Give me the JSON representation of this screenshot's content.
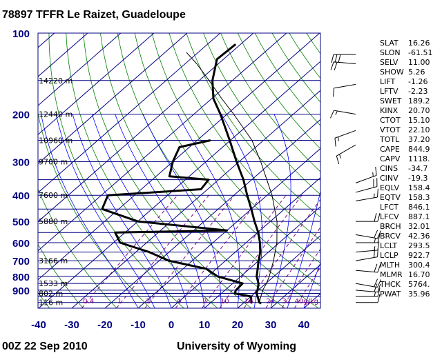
{
  "header": {
    "title": "78897 TFFR Le Raizet, Guadeloupe"
  },
  "footer": {
    "time": "00Z 22 Sep 2010",
    "source": "University of Wyoming"
  },
  "colors": {
    "isobar": "#000080",
    "isotherm": "#000080",
    "dry_adiabat": "#008000",
    "moist_adiabat": "#0000ff",
    "mixing_ratio": "#800080",
    "profile": "#000000"
  },
  "chart_data": {
    "type": "line",
    "pressure_levels": [
      100,
      200,
      300,
      400,
      500,
      600,
      700,
      800,
      900
    ],
    "temperature_ticks": [
      -40,
      -30,
      -20,
      -10,
      0,
      10,
      20,
      30,
      40
    ],
    "height_labels": [
      {
        "p": 150,
        "label": "14220 m"
      },
      {
        "p": 200,
        "label": "12440 m"
      },
      {
        "p": 250,
        "label": "10960 m"
      },
      {
        "p": 300,
        "label": "9700 m"
      },
      {
        "p": 400,
        "label": "7600 m"
      },
      {
        "p": 500,
        "label": "5880 m"
      },
      {
        "p": 700,
        "label": "3166 m"
      },
      {
        "p": 850,
        "label": "1533 m"
      },
      {
        "p": 925,
        "label": "802 m"
      },
      {
        "p": 1000,
        "label": "116 m"
      }
    ],
    "mixing_ratio_labels": [
      "0.4",
      "1",
      "2",
      "4",
      "7",
      "10",
      "16",
      "24",
      "32",
      "40g/kg"
    ],
    "mixing_ratios": [
      0.4,
      1,
      2,
      4,
      7,
      10,
      16,
      24,
      32,
      40
    ],
    "series": [
      {
        "name": "Temperature",
        "points": [
          [
            1008,
            25.5
          ],
          [
            1000,
            24.6
          ],
          [
            950,
            22.0
          ],
          [
            925,
            20.6
          ],
          [
            900,
            19.8
          ],
          [
            850,
            17.8
          ],
          [
            800,
            14.8
          ],
          [
            750,
            12.5
          ],
          [
            700,
            10.0
          ],
          [
            650,
            7.5
          ],
          [
            600,
            4.2
          ],
          [
            550,
            0.2
          ],
          [
            500,
            -4.8
          ],
          [
            450,
            -10.0
          ],
          [
            400,
            -16.0
          ],
          [
            350,
            -22.5
          ],
          [
            300,
            -30.8
          ],
          [
            250,
            -40.2
          ],
          [
            200,
            -52.0
          ],
          [
            175,
            -59.5
          ],
          [
            150,
            -66.0
          ],
          [
            125,
            -72.0
          ],
          [
            110,
            -71.5
          ]
        ]
      },
      {
        "name": "Dewpoint",
        "points": [
          [
            1008,
            22.7
          ],
          [
            1000,
            22.2
          ],
          [
            950,
            20.0
          ],
          [
            925,
            14.0
          ],
          [
            900,
            13.3
          ],
          [
            850,
            13.0
          ],
          [
            800,
            3.0
          ],
          [
            750,
            -3.0
          ],
          [
            700,
            -17.0
          ],
          [
            650,
            -26.0
          ],
          [
            600,
            -38.0
          ],
          [
            550,
            -43.0
          ],
          [
            540,
            -10.0
          ],
          [
            500,
            -40.0
          ],
          [
            450,
            -55.0
          ],
          [
            400,
            -58.0
          ],
          [
            380,
            -32.0
          ],
          [
            350,
            -33.0
          ],
          [
            340,
            -46.0
          ],
          [
            300,
            -50.0
          ],
          [
            265,
            -53.0
          ],
          [
            250,
            -46.0
          ]
        ]
      },
      {
        "name": "Parcel",
        "points": [
          [
            1000,
            24.6
          ],
          [
            950,
            23.0
          ],
          [
            900,
            21.4
          ],
          [
            850,
            20.2
          ],
          [
            800,
            18.6
          ],
          [
            700,
            14.5
          ],
          [
            600,
            9.3
          ],
          [
            500,
            2.0
          ],
          [
            400,
            -8.5
          ],
          [
            300,
            -23.5
          ],
          [
            250,
            -33.5
          ],
          [
            200,
            -48.0
          ],
          [
            175,
            -57.0
          ],
          [
            150,
            -67.0
          ],
          [
            130,
            -76.5
          ],
          [
            118,
            -83.5
          ]
        ]
      }
    ],
    "wind_barbs": [
      {
        "p": 120,
        "dir": 270,
        "spd": 30
      },
      {
        "p": 130,
        "dir": 275,
        "spd": 20
      },
      {
        "p": 155,
        "dir": 260,
        "spd": 10
      },
      {
        "p": 200,
        "dir": 280,
        "spd": 15
      },
      {
        "p": 230,
        "dir": 250,
        "spd": 15
      },
      {
        "p": 260,
        "dir": 240,
        "spd": 15
      },
      {
        "p": 360,
        "dir": 70,
        "spd": 15
      },
      {
        "p": 390,
        "dir": 75,
        "spd": 20
      },
      {
        "p": 420,
        "dir": 80,
        "spd": 15
      },
      {
        "p": 500,
        "dir": 90,
        "spd": 20
      },
      {
        "p": 560,
        "dir": 100,
        "spd": 20
      },
      {
        "p": 600,
        "dir": 90,
        "spd": 15
      },
      {
        "p": 650,
        "dir": 85,
        "spd": 15
      },
      {
        "p": 700,
        "dir": 80,
        "spd": 20
      },
      {
        "p": 760,
        "dir": 95,
        "spd": 20
      },
      {
        "p": 850,
        "dir": 100,
        "spd": 20
      },
      {
        "p": 900,
        "dir": 95,
        "spd": 20
      },
      {
        "p": 950,
        "dir": 90,
        "spd": 15
      },
      {
        "p": 1000,
        "dir": 90,
        "spd": 10
      }
    ],
    "xlim": [
      -40,
      45
    ],
    "ylim": [
      1050,
      100
    ],
    "yscale": "log"
  },
  "indices": [
    {
      "key": "SLAT",
      "value": "16.26"
    },
    {
      "key": "SLON",
      "value": "-61.51"
    },
    {
      "key": "SELV",
      "value": "11.00"
    },
    {
      "key": "SHOW",
      "value": "5.26"
    },
    {
      "key": "LIFT",
      "value": "-1.26"
    },
    {
      "key": "LFTV",
      "value": "-2.23"
    },
    {
      "key": "SWET",
      "value": "189.2"
    },
    {
      "key": "KINX",
      "value": "20.70"
    },
    {
      "key": "CTOT",
      "value": "15.10"
    },
    {
      "key": "VTOT",
      "value": "22.10"
    },
    {
      "key": "TOTL",
      "value": "37.20"
    },
    {
      "key": "CAPE",
      "value": "844.9"
    },
    {
      "key": "CAPV",
      "value": "1118."
    },
    {
      "key": "CINS",
      "value": "-34.7"
    },
    {
      "key": "CINV",
      "value": "-19.3"
    },
    {
      "key": "EQLV",
      "value": "158.4"
    },
    {
      "key": "EQTV",
      "value": "158.3"
    },
    {
      "key": "LFCT",
      "value": "846.1"
    },
    {
      "key": "LFCV",
      "value": "887.1"
    },
    {
      "key": "BRCH",
      "value": "32.01"
    },
    {
      "key": "BRCV",
      "value": "42.36"
    },
    {
      "key": "LCLT",
      "value": "293.5"
    },
    {
      "key": "LCLP",
      "value": "922.7"
    },
    {
      "key": "MLTH",
      "value": "300.4"
    },
    {
      "key": "MLMR",
      "value": "16.70"
    },
    {
      "key": "THCK",
      "value": "5764."
    },
    {
      "key": "PWAT",
      "value": "35.96"
    }
  ]
}
